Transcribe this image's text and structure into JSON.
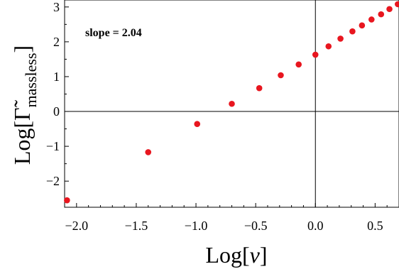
{
  "chart_data": {
    "type": "scatter",
    "x_label": {
      "prefix": "Log[",
      "symbol": "ν",
      "suffix": "]"
    },
    "y_label": {
      "prefix": "Log[",
      "symbol": "Γ̃",
      "subscript": "massless",
      "suffix": "]"
    },
    "annotation": "slope = 2.04",
    "xlim": [
      -2.1,
      0.7
    ],
    "ylim": [
      -2.75,
      3.2
    ],
    "x_ticks": [
      {
        "value": -2.0,
        "label": "−2.0"
      },
      {
        "value": -1.5,
        "label": "−1.5"
      },
      {
        "value": -1.0,
        "label": "−1.0"
      },
      {
        "value": -0.5,
        "label": "−0.5"
      },
      {
        "value": 0.0,
        "label": "0.0"
      },
      {
        "value": 0.5,
        "label": "0.5"
      }
    ],
    "y_ticks": [
      {
        "value": -2,
        "label": "−2"
      },
      {
        "value": -1,
        "label": "−1"
      },
      {
        "value": 0,
        "label": "0"
      },
      {
        "value": 1,
        "label": "1"
      },
      {
        "value": 2,
        "label": "2"
      },
      {
        "value": 3,
        "label": "3"
      }
    ],
    "point_color": "#e8161f",
    "points": [
      {
        "x": -2.08,
        "y": -2.55
      },
      {
        "x": -1.4,
        "y": -1.17
      },
      {
        "x": -0.99,
        "y": -0.36
      },
      {
        "x": -0.7,
        "y": 0.22
      },
      {
        "x": -0.47,
        "y": 0.67
      },
      {
        "x": -0.29,
        "y": 1.04
      },
      {
        "x": -0.14,
        "y": 1.35
      },
      {
        "x": 0.0,
        "y": 1.63
      },
      {
        "x": 0.11,
        "y": 1.87
      },
      {
        "x": 0.21,
        "y": 2.09
      },
      {
        "x": 0.31,
        "y": 2.3
      },
      {
        "x": 0.39,
        "y": 2.47
      },
      {
        "x": 0.47,
        "y": 2.64
      },
      {
        "x": 0.55,
        "y": 2.79
      },
      {
        "x": 0.62,
        "y": 2.94
      },
      {
        "x": 0.69,
        "y": 3.08
      }
    ]
  }
}
